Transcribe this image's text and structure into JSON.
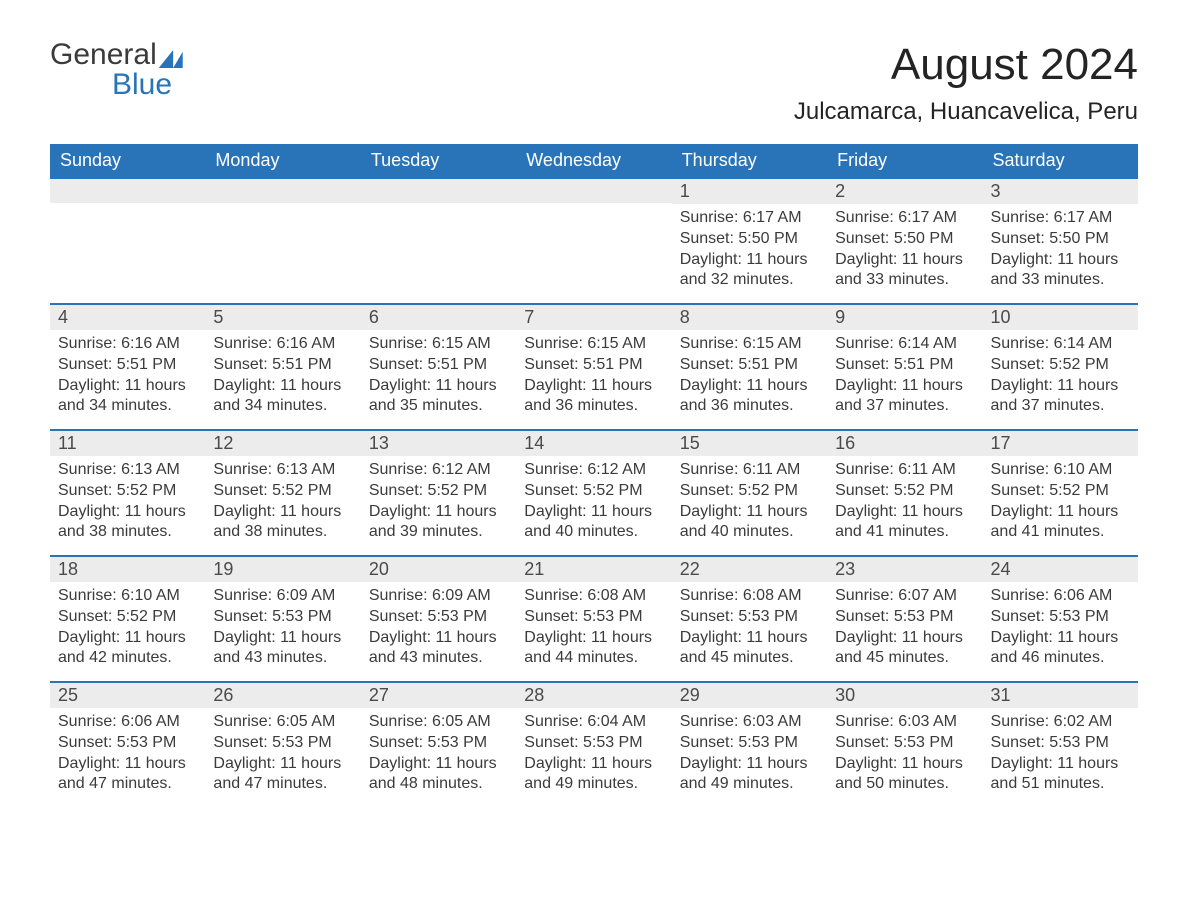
{
  "logo": {
    "text_general": "General",
    "text_blue": "Blue"
  },
  "title": "August 2024",
  "location": "Julcamarca, Huancavelica, Peru",
  "colors": {
    "header_bg": "#2974b8",
    "header_text": "#ffffff",
    "day_number_bg": "#ececec",
    "day_border_top": "#2974b8",
    "body_text": "#3b3b3b",
    "page_bg": "#ffffff"
  },
  "day_labels": [
    "Sunday",
    "Monday",
    "Tuesday",
    "Wednesday",
    "Thursday",
    "Friday",
    "Saturday"
  ],
  "weeks": [
    [
      null,
      null,
      null,
      null,
      {
        "n": "1",
        "sunrise": "Sunrise: 6:17 AM",
        "sunset": "Sunset: 5:50 PM",
        "daylight": "Daylight: 11 hours and 32 minutes."
      },
      {
        "n": "2",
        "sunrise": "Sunrise: 6:17 AM",
        "sunset": "Sunset: 5:50 PM",
        "daylight": "Daylight: 11 hours and 33 minutes."
      },
      {
        "n": "3",
        "sunrise": "Sunrise: 6:17 AM",
        "sunset": "Sunset: 5:50 PM",
        "daylight": "Daylight: 11 hours and 33 minutes."
      }
    ],
    [
      {
        "n": "4",
        "sunrise": "Sunrise: 6:16 AM",
        "sunset": "Sunset: 5:51 PM",
        "daylight": "Daylight: 11 hours and 34 minutes."
      },
      {
        "n": "5",
        "sunrise": "Sunrise: 6:16 AM",
        "sunset": "Sunset: 5:51 PM",
        "daylight": "Daylight: 11 hours and 34 minutes."
      },
      {
        "n": "6",
        "sunrise": "Sunrise: 6:15 AM",
        "sunset": "Sunset: 5:51 PM",
        "daylight": "Daylight: 11 hours and 35 minutes."
      },
      {
        "n": "7",
        "sunrise": "Sunrise: 6:15 AM",
        "sunset": "Sunset: 5:51 PM",
        "daylight": "Daylight: 11 hours and 36 minutes."
      },
      {
        "n": "8",
        "sunrise": "Sunrise: 6:15 AM",
        "sunset": "Sunset: 5:51 PM",
        "daylight": "Daylight: 11 hours and 36 minutes."
      },
      {
        "n": "9",
        "sunrise": "Sunrise: 6:14 AM",
        "sunset": "Sunset: 5:51 PM",
        "daylight": "Daylight: 11 hours and 37 minutes."
      },
      {
        "n": "10",
        "sunrise": "Sunrise: 6:14 AM",
        "sunset": "Sunset: 5:52 PM",
        "daylight": "Daylight: 11 hours and 37 minutes."
      }
    ],
    [
      {
        "n": "11",
        "sunrise": "Sunrise: 6:13 AM",
        "sunset": "Sunset: 5:52 PM",
        "daylight": "Daylight: 11 hours and 38 minutes."
      },
      {
        "n": "12",
        "sunrise": "Sunrise: 6:13 AM",
        "sunset": "Sunset: 5:52 PM",
        "daylight": "Daylight: 11 hours and 38 minutes."
      },
      {
        "n": "13",
        "sunrise": "Sunrise: 6:12 AM",
        "sunset": "Sunset: 5:52 PM",
        "daylight": "Daylight: 11 hours and 39 minutes."
      },
      {
        "n": "14",
        "sunrise": "Sunrise: 6:12 AM",
        "sunset": "Sunset: 5:52 PM",
        "daylight": "Daylight: 11 hours and 40 minutes."
      },
      {
        "n": "15",
        "sunrise": "Sunrise: 6:11 AM",
        "sunset": "Sunset: 5:52 PM",
        "daylight": "Daylight: 11 hours and 40 minutes."
      },
      {
        "n": "16",
        "sunrise": "Sunrise: 6:11 AM",
        "sunset": "Sunset: 5:52 PM",
        "daylight": "Daylight: 11 hours and 41 minutes."
      },
      {
        "n": "17",
        "sunrise": "Sunrise: 6:10 AM",
        "sunset": "Sunset: 5:52 PM",
        "daylight": "Daylight: 11 hours and 41 minutes."
      }
    ],
    [
      {
        "n": "18",
        "sunrise": "Sunrise: 6:10 AM",
        "sunset": "Sunset: 5:52 PM",
        "daylight": "Daylight: 11 hours and 42 minutes."
      },
      {
        "n": "19",
        "sunrise": "Sunrise: 6:09 AM",
        "sunset": "Sunset: 5:53 PM",
        "daylight": "Daylight: 11 hours and 43 minutes."
      },
      {
        "n": "20",
        "sunrise": "Sunrise: 6:09 AM",
        "sunset": "Sunset: 5:53 PM",
        "daylight": "Daylight: 11 hours and 43 minutes."
      },
      {
        "n": "21",
        "sunrise": "Sunrise: 6:08 AM",
        "sunset": "Sunset: 5:53 PM",
        "daylight": "Daylight: 11 hours and 44 minutes."
      },
      {
        "n": "22",
        "sunrise": "Sunrise: 6:08 AM",
        "sunset": "Sunset: 5:53 PM",
        "daylight": "Daylight: 11 hours and 45 minutes."
      },
      {
        "n": "23",
        "sunrise": "Sunrise: 6:07 AM",
        "sunset": "Sunset: 5:53 PM",
        "daylight": "Daylight: 11 hours and 45 minutes."
      },
      {
        "n": "24",
        "sunrise": "Sunrise: 6:06 AM",
        "sunset": "Sunset: 5:53 PM",
        "daylight": "Daylight: 11 hours and 46 minutes."
      }
    ],
    [
      {
        "n": "25",
        "sunrise": "Sunrise: 6:06 AM",
        "sunset": "Sunset: 5:53 PM",
        "daylight": "Daylight: 11 hours and 47 minutes."
      },
      {
        "n": "26",
        "sunrise": "Sunrise: 6:05 AM",
        "sunset": "Sunset: 5:53 PM",
        "daylight": "Daylight: 11 hours and 47 minutes."
      },
      {
        "n": "27",
        "sunrise": "Sunrise: 6:05 AM",
        "sunset": "Sunset: 5:53 PM",
        "daylight": "Daylight: 11 hours and 48 minutes."
      },
      {
        "n": "28",
        "sunrise": "Sunrise: 6:04 AM",
        "sunset": "Sunset: 5:53 PM",
        "daylight": "Daylight: 11 hours and 49 minutes."
      },
      {
        "n": "29",
        "sunrise": "Sunrise: 6:03 AM",
        "sunset": "Sunset: 5:53 PM",
        "daylight": "Daylight: 11 hours and 49 minutes."
      },
      {
        "n": "30",
        "sunrise": "Sunrise: 6:03 AM",
        "sunset": "Sunset: 5:53 PM",
        "daylight": "Daylight: 11 hours and 50 minutes."
      },
      {
        "n": "31",
        "sunrise": "Sunrise: 6:02 AM",
        "sunset": "Sunset: 5:53 PM",
        "daylight": "Daylight: 11 hours and 51 minutes."
      }
    ]
  ]
}
